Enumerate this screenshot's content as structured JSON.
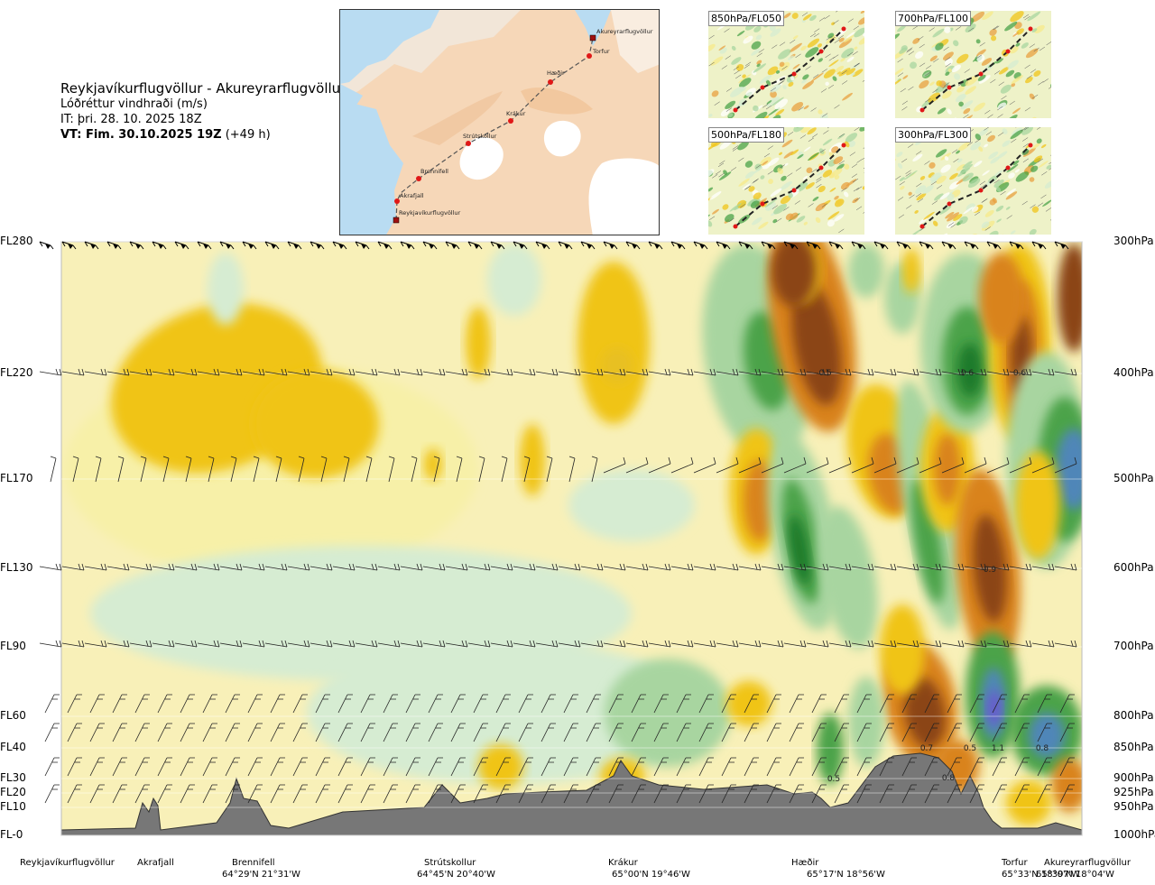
{
  "title": {
    "route": "Reykjavíkurflugvöllur - Akureyrarflugvöllur",
    "parameter": "Lóðréttur vindhraði (m/s)",
    "init_time": "IT: þri. 28. 10. 2025 18Z",
    "valid_label": "VT: Fim. 30.10.2025 19Z",
    "valid_offset": "(+49 h)"
  },
  "map": {
    "waypoints": [
      {
        "name": "Akureyrarflugvöllur"
      },
      {
        "name": "Torfur"
      },
      {
        "name": "Hæðir"
      },
      {
        "name": "Krákur"
      },
      {
        "name": "Strútskollur"
      },
      {
        "name": "Brennifell"
      },
      {
        "name": "Akrafjall"
      },
      {
        "name": "Reykjavíkurflugvöllur"
      }
    ]
  },
  "mini_maps": [
    {
      "label": "850hPa/FL050"
    },
    {
      "label": "700hPa/FL100"
    },
    {
      "label": "500hPa/FL180"
    },
    {
      "label": "300hPa/FL300"
    }
  ],
  "levels_left": [
    "FL280",
    "FL220",
    "FL170",
    "FL130",
    "FL90",
    "FL60",
    "FL40",
    "FL30",
    "FL20",
    "FL10",
    "FL-0"
  ],
  "levels_right": [
    "300hPa",
    "400hPa",
    "500hPa",
    "600hPa",
    "700hPa",
    "800hPa",
    "850hPa",
    "900hPa",
    "925hPa",
    "950hPa",
    "1000hPa"
  ],
  "locations": [
    {
      "name": "Reykjavíkurflugvöllur",
      "coord": ""
    },
    {
      "name": "Akrafjall",
      "coord": ""
    },
    {
      "name": "Brennifell",
      "coord": "64°29'N 21°31'W"
    },
    {
      "name": "Strútskollur",
      "coord": "64°45'N 20°40'W"
    },
    {
      "name": "Krákur",
      "coord": "65°00'N 19°46'W"
    },
    {
      "name": "Hæðir",
      "coord": "65°17'N 18°56'W"
    },
    {
      "name": "Torfur",
      "coord": "65°33'N 18°07'W"
    },
    {
      "name": "Akureyrarflugvöllur",
      "coord": "65°39'N 18°04'W"
    }
  ],
  "value_labels": [
    "-0.5",
    "0.6",
    "0.6",
    "0.9",
    "0.5",
    "0.8",
    "0.5",
    "1.1",
    "0.8",
    "0.7"
  ],
  "chart_data": {
    "type": "heatmap",
    "title": "Lóðréttur vindhraði (m/s)",
    "xlabel": "",
    "ylabel": "",
    "y_levels_fl": [
      "FL280",
      "FL220",
      "FL170",
      "FL130",
      "FL90",
      "FL60",
      "FL40",
      "FL30",
      "FL20",
      "FL10",
      "FL-0"
    ],
    "y_levels_hpa": [
      300,
      400,
      500,
      600,
      700,
      800,
      850,
      900,
      925,
      950,
      1000
    ],
    "x_locations": [
      "Reykjavíkurflugvöllur",
      "Akrafjall",
      "Brennifell",
      "Strútskollur",
      "Krákur",
      "Hæðir",
      "Torfur",
      "Akureyrarflugvöllur"
    ],
    "annotated_values": [
      -0.5,
      0.6,
      0.6,
      0.9,
      0.5,
      0.8,
      0.5,
      1.1,
      0.8,
      0.7
    ],
    "colors": {
      "strong_down": "#8b4513",
      "moderate_down": "#d9831a",
      "weak_down": "#f0c419",
      "very_weak_down": "#f7f0a8",
      "near_zero": "#f8f4c0",
      "very_weak_up": "#d6ecd2",
      "weak_up": "#a8d5a0",
      "moderate_up": "#4ba34a",
      "strong_up": "#1f7a2a",
      "very_strong_up": "#4f86b8",
      "extreme_up": "#6a5acd",
      "terrain": "#777777"
    },
    "grid": true,
    "legend": "none"
  }
}
